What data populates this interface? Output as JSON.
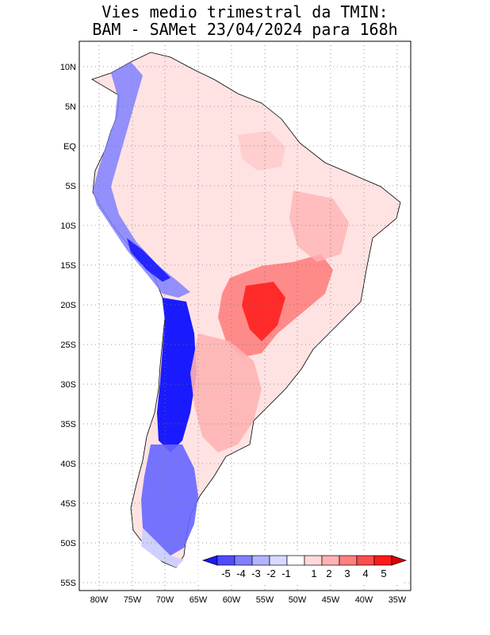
{
  "title_line1": "Vies medio trimestral da TMIN:",
  "title_line2": "BAM - SAMet 23/04/2024  para 168h",
  "lat_labels": [
    "10N",
    "5N",
    "EQ",
    "5S",
    "10S",
    "15S",
    "20S",
    "25S",
    "30S",
    "35S",
    "40S",
    "45S",
    "50S",
    "55S"
  ],
  "lon_labels": [
    "80W",
    "75W",
    "70W",
    "65W",
    "60W",
    "55W",
    "50W",
    "45W",
    "40W",
    "35W"
  ],
  "colorbar": {
    "labels": [
      "-5",
      "-4",
      "-3",
      "-2",
      "-1",
      "1",
      "2",
      "3",
      "4",
      "5"
    ],
    "colors": [
      "#1a1aff",
      "#4d4dff",
      "#8080ff",
      "#b3b3ff",
      "#d9d9ff",
      "#ffffff",
      "#ffd9d9",
      "#ffb3b3",
      "#ff8080",
      "#ff4d4d",
      "#ff1a1a",
      "#e00000"
    ]
  },
  "map": {
    "lon_range": [
      -83,
      -34
    ],
    "lat_range": [
      -56,
      13
    ],
    "grid": "dotted",
    "region": "South America"
  }
}
